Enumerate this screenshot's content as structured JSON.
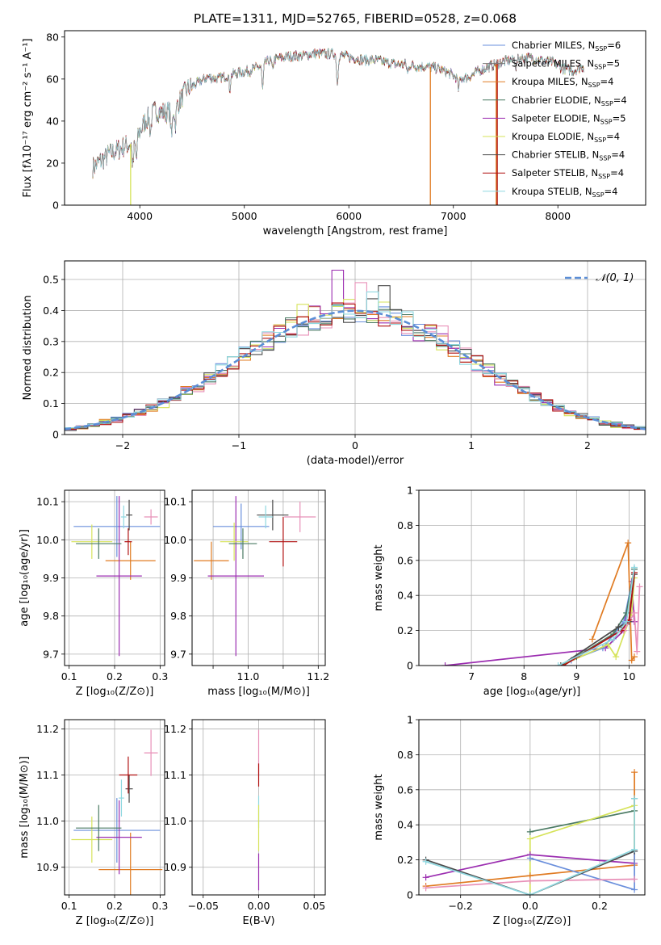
{
  "figure": {
    "title": "PLATE=1311, MJD=52765, FIBERID=0528, z=0.068"
  },
  "palette": {
    "blue": "#6a8fdc",
    "orange": "#e07b22",
    "purple": "#9b2db0",
    "yellow": "#d6e35a",
    "pink": "#e890b8",
    "dkgreen": "#4a7a63",
    "darkgray": "#4a4a4a",
    "red": "#b01010",
    "cyan": "#8fd8e0",
    "gray": "#777777",
    "gaussian": "#5b8ed6",
    "grid": "#b0b0b0"
  },
  "chart_data": [
    {
      "id": "spectrum",
      "type": "line",
      "title": "PLATE=1311, MJD=52765, FIBERID=0528, z=0.068",
      "xlabel": "wavelength [Angstrom, rest frame]",
      "ylabel": "Flux [fλ10⁻¹⁷ erg cm⁻² s⁻¹ A⁻¹]",
      "xlim": [
        3280,
        8840
      ],
      "ylim": [
        0,
        83
      ],
      "xticks": [
        4000,
        5000,
        6000,
        7000,
        8000
      ],
      "yticks": [
        0,
        20,
        40,
        60,
        80
      ],
      "grid": false,
      "legend_position": "top-right",
      "continuum": {
        "x": [
          3550,
          3700,
          3850,
          3950,
          4050,
          4150,
          4250,
          4350,
          4450,
          4550,
          4650,
          4750,
          4850,
          4950,
          5050,
          5150,
          5250,
          5350,
          5450,
          5550,
          5650,
          5750,
          5850,
          5950,
          6050,
          6150,
          6250,
          6350,
          6450,
          6550,
          6650,
          6750,
          6850,
          6950,
          7050,
          7150,
          7250,
          7350,
          7450,
          7550,
          7650,
          7750,
          7850,
          7950,
          8050,
          8150,
          8250
        ],
        "y": [
          18,
          24,
          28,
          30,
          40,
          45,
          44,
          47,
          55,
          58,
          61,
          60,
          62,
          63,
          64,
          66,
          69,
          70,
          71,
          71,
          72,
          72,
          72,
          71,
          70,
          69,
          69,
          68,
          67,
          67,
          66,
          66,
          65,
          63,
          60,
          61,
          64,
          66,
          68,
          69,
          70,
          70,
          69,
          68,
          65,
          64,
          66
        ]
      },
      "absorption_lines": [
        {
          "x": 3934,
          "depth": 12
        },
        {
          "x": 3968,
          "depth": 10
        },
        {
          "x": 4102,
          "depth": 8
        },
        {
          "x": 4304,
          "depth": 14
        },
        {
          "x": 4340,
          "depth": 8
        },
        {
          "x": 4861,
          "depth": 7
        },
        {
          "x": 5175,
          "depth": 12
        },
        {
          "x": 5270,
          "depth": 5
        },
        {
          "x": 5890,
          "depth": 14
        },
        {
          "x": 6563,
          "depth": 4
        },
        {
          "x": 7050,
          "depth": 5
        },
        {
          "x": 7600,
          "depth": 4
        }
      ],
      "spikes_to_zero": [
        {
          "x": 3912,
          "color": "yellow"
        },
        {
          "x": 6780,
          "color": "orange"
        },
        {
          "x": 7410,
          "color": "orange"
        },
        {
          "x": 7420,
          "color": "red"
        }
      ],
      "series": [
        {
          "name": "Chabrier MILES, N",
          "suffix": "=6",
          "color": "blue"
        },
        {
          "name": "Salpeter MILES, N",
          "suffix": "=5",
          "color": "gray"
        },
        {
          "name": "Kroupa MILES, N",
          "suffix": "=4",
          "color": "orange"
        },
        {
          "name": "Chabrier ELODIE, N",
          "suffix": "=4",
          "color": "dkgreen"
        },
        {
          "name": "Salpeter ELODIE, N",
          "suffix": "=5",
          "color": "purple"
        },
        {
          "name": "Kroupa ELODIE, N",
          "suffix": "=4",
          "color": "yellow"
        },
        {
          "name": "Chabrier STELIB, N",
          "suffix": "=4",
          "color": "darkgray"
        },
        {
          "name": "Salpeter STELIB, N",
          "suffix": "=4",
          "color": "red"
        },
        {
          "name": "Kroupa STELIB, N",
          "suffix": "=4",
          "color": "cyan"
        }
      ],
      "legend_subscript": "SSP"
    },
    {
      "id": "residuals",
      "type": "histogram",
      "xlabel": "(data-model)/error",
      "ylabel": "Normed distribution",
      "xlim": [
        -2.5,
        2.5
      ],
      "ylim": [
        0,
        0.56
      ],
      "xticks": [
        -2,
        -1,
        0,
        1,
        2
      ],
      "yticks": [
        0.0,
        0.1,
        0.2,
        0.3,
        0.4,
        0.5
      ],
      "grid": true,
      "legend_position": "top-right",
      "gaussian_label": "𝒩(0, 1)",
      "bin_width": 0.1,
      "histogram_colors": [
        "blue",
        "orange",
        "purple",
        "yellow",
        "pink",
        "dkgreen",
        "darkgray",
        "red",
        "cyan"
      ],
      "spikes": [
        {
          "x": 0.05,
          "y": 0.49,
          "color": "pink"
        },
        {
          "x": -0.15,
          "y": 0.53,
          "color": "purple"
        },
        {
          "x": 0.25,
          "y": 0.48,
          "color": "darkgray"
        },
        {
          "x": 0.15,
          "y": 0.46,
          "color": "cyan"
        },
        {
          "x": -0.45,
          "y": 0.42,
          "color": "yellow"
        },
        {
          "x": 0.75,
          "y": 0.35,
          "color": "pink"
        }
      ]
    },
    {
      "id": "age_vs_Z",
      "type": "errorbar",
      "xlabel": "Z [log₁₀(Z/Z⊙)]",
      "ylabel": "age  [log₁₀(age/yr)]",
      "xlim": [
        0.09,
        0.31
      ],
      "ylim": [
        9.67,
        10.13
      ],
      "xticks": [
        0.1,
        0.2,
        0.3
      ],
      "xticklabels": [
        "0.1",
        "0.2",
        "0.3"
      ],
      "yticks": [
        9.7,
        9.8,
        9.9,
        10.0,
        10.1
      ],
      "yticklabels": [
        "9.7",
        "9.8",
        "9.9",
        "10.0",
        "10.1"
      ],
      "grid": true,
      "points": [
        {
          "x": 0.205,
          "y": 10.035,
          "xerr": 0.095,
          "yerr": 0.08,
          "color": "blue"
        },
        {
          "x": 0.235,
          "y": 9.945,
          "xerr": 0.055,
          "yerr": 0.05,
          "color": "orange"
        },
        {
          "x": 0.21,
          "y": 9.905,
          "xerr": 0.05,
          "yerr": 0.21,
          "color": "purple"
        },
        {
          "x": 0.15,
          "y": 9.995,
          "xerr": 0.045,
          "yerr": 0.045,
          "color": "yellow"
        },
        {
          "x": 0.28,
          "y": 10.06,
          "xerr": 0.015,
          "yerr": 0.02,
          "color": "pink"
        },
        {
          "x": 0.165,
          "y": 9.99,
          "xerr": 0.05,
          "yerr": 0.04,
          "color": "dkgreen"
        },
        {
          "x": 0.232,
          "y": 10.065,
          "xerr": 0.007,
          "yerr": 0.04,
          "color": "darkgray"
        },
        {
          "x": 0.23,
          "y": 9.995,
          "xerr": 0.008,
          "yerr": 0.035,
          "color": "red"
        },
        {
          "x": 0.22,
          "y": 10.06,
          "xerr": 0.006,
          "yerr": 0.03,
          "color": "cyan"
        }
      ]
    },
    {
      "id": "age_vs_mass",
      "type": "errorbar",
      "xlabel": "mass [log₁₀(M/M⊙)]",
      "ylabel": "",
      "xlim": [
        10.84,
        11.22
      ],
      "ylim": [
        9.67,
        10.13
      ],
      "xticks": [
        10.9,
        11.0,
        11.1,
        11.2
      ],
      "xticklabels": [
        "",
        "11.0",
        "",
        "11.2"
      ],
      "yticks": [
        9.7,
        9.8,
        9.9,
        10.0,
        10.1
      ],
      "yticklabels": [
        "9.7",
        "9.8",
        "9.9",
        "10.0",
        "10.1"
      ],
      "grid": true,
      "points": [
        {
          "x": 10.98,
          "y": 10.035,
          "xerr": 0.08,
          "yerr": 0.06,
          "color": "blue"
        },
        {
          "x": 10.895,
          "y": 9.945,
          "xerr": 0.05,
          "yerr": 0.05,
          "color": "orange"
        },
        {
          "x": 10.965,
          "y": 9.905,
          "xerr": 0.08,
          "yerr": 0.21,
          "color": "purple"
        },
        {
          "x": 10.96,
          "y": 9.995,
          "xerr": 0.04,
          "yerr": 0.05,
          "color": "yellow"
        },
        {
          "x": 11.148,
          "y": 10.06,
          "xerr": 0.045,
          "yerr": 0.04,
          "color": "pink"
        },
        {
          "x": 10.985,
          "y": 9.99,
          "xerr": 0.04,
          "yerr": 0.04,
          "color": "dkgreen"
        },
        {
          "x": 11.07,
          "y": 10.065,
          "xerr": 0.045,
          "yerr": 0.04,
          "color": "darkgray"
        },
        {
          "x": 11.1,
          "y": 9.995,
          "xerr": 0.04,
          "yerr": 0.065,
          "color": "red"
        },
        {
          "x": 11.05,
          "y": 10.06,
          "xerr": 0.02,
          "yerr": 0.03,
          "color": "cyan"
        }
      ]
    },
    {
      "id": "sfh_age",
      "type": "line",
      "xlabel": "age  [log₁₀(age/yr)]",
      "ylabel": "mass weight",
      "xlim": [
        6.0,
        10.3
      ],
      "ylim": [
        0,
        1.0
      ],
      "xticks": [
        7,
        8,
        9,
        10
      ],
      "yticks": [
        0.0,
        0.2,
        0.4,
        0.6,
        0.8,
        1.0
      ],
      "grid": true,
      "series": [
        {
          "color": "purple",
          "x": [
            6.5,
            9.55,
            9.9,
            10.05,
            10.1
          ],
          "y": [
            0.0,
            0.1,
            0.2,
            0.48,
            0.25
          ]
        },
        {
          "color": "orange",
          "x": [
            9.3,
            9.98,
            10.05,
            10.1
          ],
          "y": [
            0.15,
            0.7,
            0.03,
            0.05
          ]
        },
        {
          "color": "blue",
          "x": [
            8.9,
            9.5,
            9.9,
            10.1
          ],
          "y": [
            0.03,
            0.1,
            0.25,
            0.55
          ]
        },
        {
          "color": "yellow",
          "x": [
            8.7,
            9.6,
            9.75,
            10.05,
            10.1
          ],
          "y": [
            0.0,
            0.12,
            0.05,
            0.3,
            0.5
          ]
        },
        {
          "color": "pink",
          "x": [
            9.9,
            10.1,
            10.15,
            10.2
          ],
          "y": [
            0.2,
            0.3,
            0.08,
            0.45
          ]
        },
        {
          "color": "dkgreen",
          "x": [
            9.0,
            9.7,
            9.95,
            10.1
          ],
          "y": [
            0.05,
            0.18,
            0.3,
            0.55
          ]
        },
        {
          "color": "darkgray",
          "x": [
            8.7,
            9.8,
            10.0,
            10.1
          ],
          "y": [
            0.0,
            0.22,
            0.25,
            0.52
          ]
        },
        {
          "color": "red",
          "x": [
            8.75,
            9.85,
            10.0,
            10.1
          ],
          "y": [
            0.0,
            0.2,
            0.26,
            0.53
          ]
        },
        {
          "color": "cyan",
          "x": [
            8.65,
            9.7,
            9.95,
            10.1
          ],
          "y": [
            0.0,
            0.15,
            0.25,
            0.56
          ]
        }
      ]
    },
    {
      "id": "mass_vs_Z",
      "type": "errorbar",
      "xlabel": "Z [log₁₀(Z/Z⊙)]",
      "ylabel": "mass [log₁₀(M/M⊙)]",
      "xlim": [
        0.09,
        0.31
      ],
      "ylim": [
        10.84,
        11.22
      ],
      "xticks": [
        0.1,
        0.2,
        0.3
      ],
      "xticklabels": [
        "0.1",
        "0.2",
        "0.3"
      ],
      "yticks": [
        10.9,
        11.0,
        11.1,
        11.2
      ],
      "yticklabels": [
        "10.9",
        "11.0",
        "11.1",
        "11.2"
      ],
      "grid": true,
      "points": [
        {
          "x": 0.205,
          "y": 10.98,
          "xerr": 0.095,
          "yerr": 0.07,
          "color": "blue"
        },
        {
          "x": 0.235,
          "y": 10.895,
          "xerr": 0.07,
          "yerr": 0.08,
          "color": "orange"
        },
        {
          "x": 0.21,
          "y": 10.965,
          "xerr": 0.05,
          "yerr": 0.08,
          "color": "purple"
        },
        {
          "x": 0.15,
          "y": 10.96,
          "xerr": 0.045,
          "yerr": 0.05,
          "color": "yellow"
        },
        {
          "x": 0.28,
          "y": 11.148,
          "xerr": 0.015,
          "yerr": 0.05,
          "color": "pink"
        },
        {
          "x": 0.165,
          "y": 10.985,
          "xerr": 0.05,
          "yerr": 0.05,
          "color": "dkgreen"
        },
        {
          "x": 0.232,
          "y": 11.07,
          "xerr": 0.008,
          "yerr": 0.03,
          "color": "darkgray"
        },
        {
          "x": 0.23,
          "y": 11.1,
          "xerr": 0.02,
          "yerr": 0.04,
          "color": "red"
        },
        {
          "x": 0.215,
          "y": 11.05,
          "xerr": 0.006,
          "yerr": 0.04,
          "color": "cyan"
        }
      ]
    },
    {
      "id": "mass_vs_ebv",
      "type": "errorbar",
      "xlabel": "E(B-V)",
      "ylabel": "",
      "xlim": [
        -0.06,
        0.06
      ],
      "ylim": [
        10.84,
        11.22
      ],
      "xticks": [
        -0.05,
        0.0,
        0.05
      ],
      "xticklabels": [
        "−0.05",
        "0.00",
        "0.05"
      ],
      "yticks": [
        10.9,
        11.0,
        11.1,
        11.2
      ],
      "yticklabels": [
        "10.9",
        "11.0",
        "11.1",
        "11.2"
      ],
      "grid": true,
      "points": [
        {
          "x": 0.0,
          "y": 11.148,
          "xerr": 0,
          "yerr": 0.05,
          "color": "pink"
        },
        {
          "x": 0.0,
          "y": 11.1,
          "xerr": 0,
          "yerr": 0.025,
          "color": "red"
        },
        {
          "x": 0.0,
          "y": 11.02,
          "xerr": 0,
          "yerr": 0.035,
          "color": "cyan"
        },
        {
          "x": 0.0,
          "y": 10.985,
          "xerr": 0,
          "yerr": 0.05,
          "color": "yellow"
        },
        {
          "x": 0.0,
          "y": 10.89,
          "xerr": 0,
          "yerr": 0.04,
          "color": "purple"
        }
      ]
    },
    {
      "id": "sfh_Z",
      "type": "line",
      "xlabel": "Z [log₁₀(Z/Z⊙)]",
      "ylabel": "mass weight",
      "xlim": [
        -0.32,
        0.33
      ],
      "ylim": [
        0,
        1.0
      ],
      "xticks": [
        -0.2,
        0.0,
        0.2
      ],
      "xticklabels": [
        "−0.2",
        "0.0",
        "0.2"
      ],
      "yticks": [
        0.0,
        0.2,
        0.4,
        0.6,
        0.8,
        1.0
      ],
      "grid": true,
      "series": [
        {
          "color": "dkgreen",
          "x": [
            0.0,
            0.3,
            0.3
          ],
          "y": [
            0.36,
            0.48,
            0.55
          ]
        },
        {
          "color": "yellow",
          "x": [
            0.0,
            0.0,
            0.3,
            0.3
          ],
          "y": [
            0.0,
            0.32,
            0.51,
            0.25
          ]
        },
        {
          "color": "orange",
          "x": [
            -0.3,
            0.0,
            0.3,
            0.3
          ],
          "y": [
            0.05,
            0.11,
            0.17,
            0.7
          ]
        },
        {
          "color": "purple",
          "x": [
            -0.3,
            0.0,
            0.3
          ],
          "y": [
            0.1,
            0.23,
            0.18
          ]
        },
        {
          "color": "blue",
          "x": [
            0.0,
            0.3,
            0.3
          ],
          "y": [
            0.21,
            0.03,
            0.25
          ]
        },
        {
          "color": "pink",
          "x": [
            -0.3,
            0.0,
            0.3
          ],
          "y": [
            0.04,
            0.08,
            0.09
          ]
        },
        {
          "color": "darkgray",
          "x": [
            -0.3,
            0.0,
            0.3
          ],
          "y": [
            0.2,
            0.0,
            0.25
          ]
        },
        {
          "color": "cyan",
          "x": [
            -0.3,
            0.0,
            0.3,
            0.3
          ],
          "y": [
            0.19,
            0.0,
            0.26,
            0.55
          ]
        }
      ]
    }
  ]
}
